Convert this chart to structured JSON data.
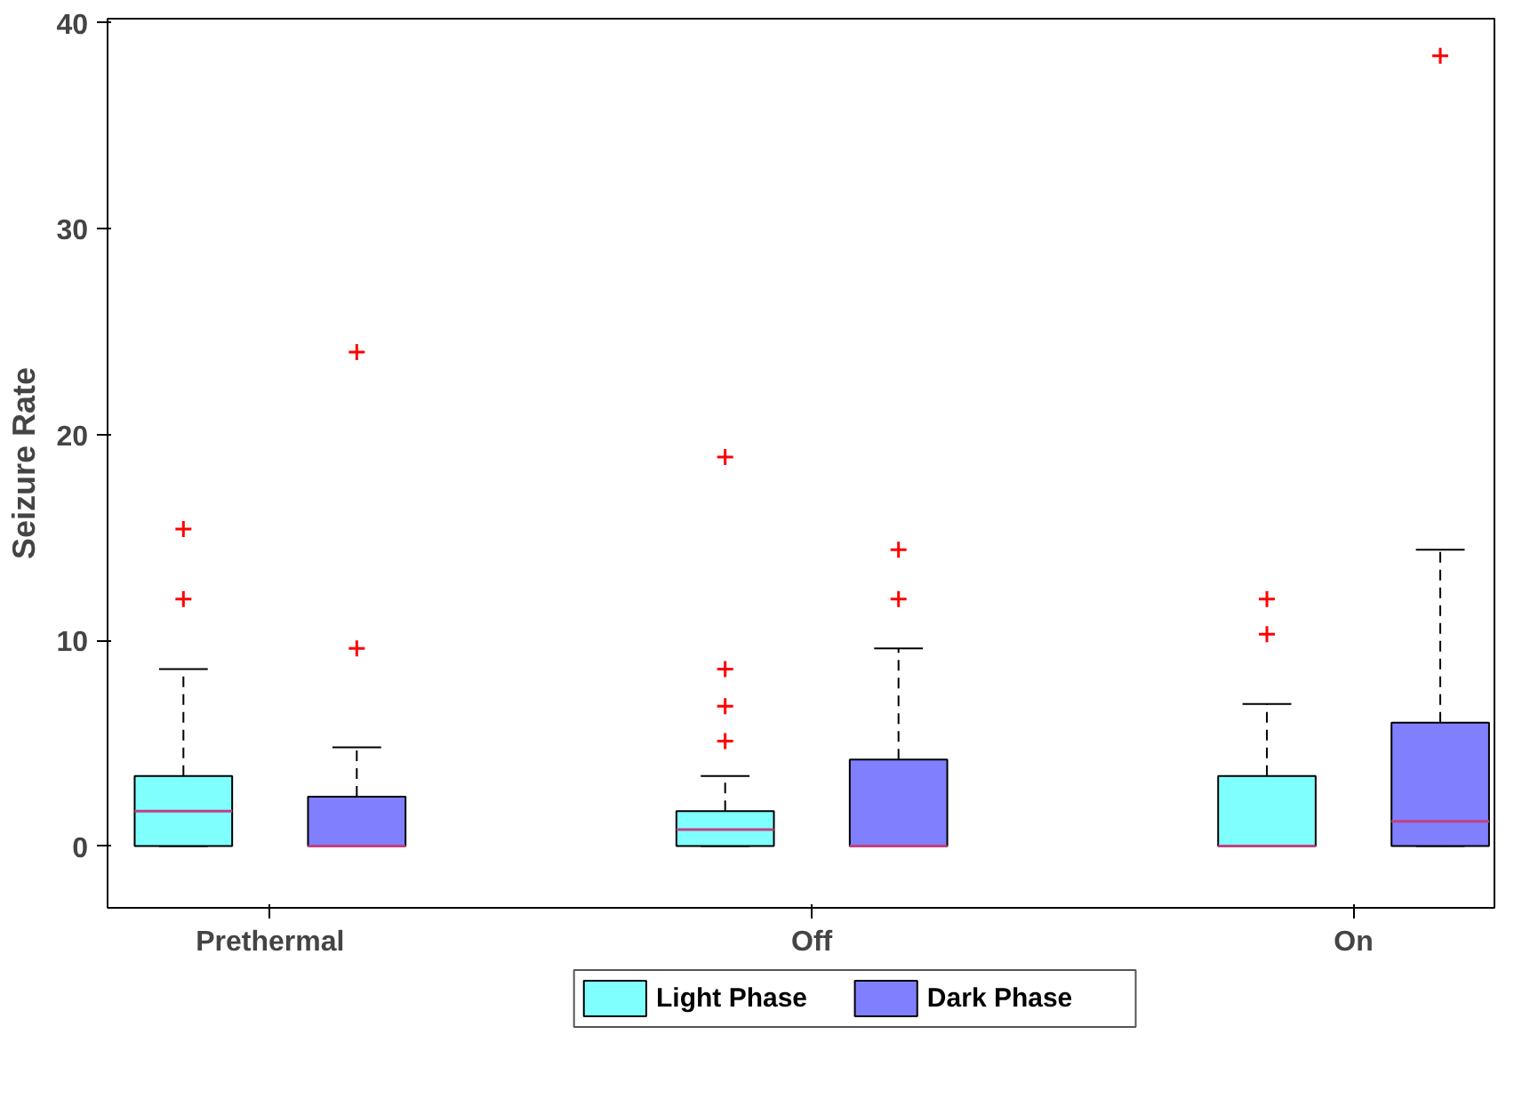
{
  "chart_data": {
    "type": "box",
    "ylabel": "Seizure Rate",
    "categories": [
      "Prethermal",
      "Off",
      "On"
    ],
    "ylim": [
      -3,
      40.2
    ],
    "yticks": [
      0,
      10,
      20,
      30,
      40
    ],
    "grid": false,
    "legend": "bottom",
    "series": [
      {
        "name": "Light Phase",
        "color": "#80ffff",
        "boxes": [
          {
            "low": 0,
            "q1": 0,
            "median": 1.7,
            "q3": 3.4,
            "high": 8.6,
            "outliers": [
              12.0,
              15.4
            ]
          },
          {
            "low": 0,
            "q1": 0,
            "median": 0.8,
            "q3": 1.7,
            "high": 3.4,
            "outliers": [
              5.1,
              6.8,
              8.6,
              18.9
            ]
          },
          {
            "low": 0,
            "q1": 0,
            "median": 0,
            "q3": 3.4,
            "high": 6.9,
            "outliers": [
              10.3,
              12.0
            ]
          }
        ]
      },
      {
        "name": "Dark Phase",
        "color": "#8080ff",
        "boxes": [
          {
            "low": 0,
            "q1": 0,
            "median": 0,
            "q3": 2.4,
            "high": 4.8,
            "outliers": [
              9.6,
              24.0
            ]
          },
          {
            "low": 0,
            "q1": 0,
            "median": 0,
            "q3": 4.2,
            "high": 9.6,
            "outliers": [
              12.0,
              14.4
            ]
          },
          {
            "low": 0,
            "q1": 0,
            "median": 1.2,
            "q3": 6.0,
            "high": 14.4,
            "outliers": [
              38.4
            ]
          }
        ]
      }
    ]
  }
}
